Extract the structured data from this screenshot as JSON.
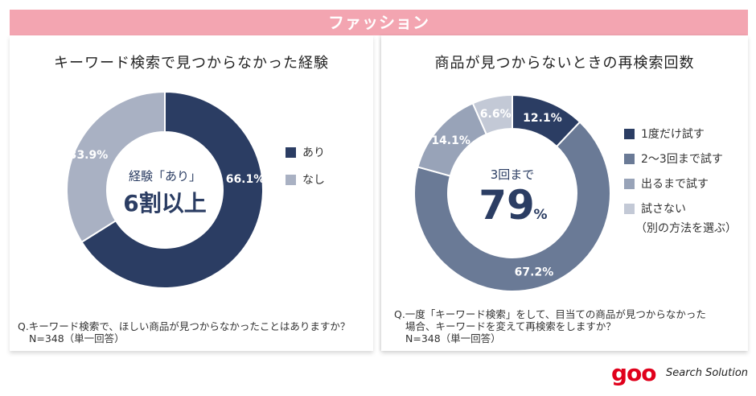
{
  "banner": "ファッション",
  "left": {
    "title": "キーワード検索で見つからなかった経験",
    "center_small": "経験「あり」",
    "center_big": "6割以上",
    "note_q": "Q.キーワード検索で、ほしい商品が見つからなかったことはありますか？",
    "note_n": "N=348（単一回答）"
  },
  "right": {
    "title": "商品が見つからないときの再検索回数",
    "center_small": "3回まで",
    "center_big": "79",
    "center_unit": "%",
    "note_q1": "Q.一度「キーワード検索」をして、目当ての商品が見つからなかった",
    "note_q2": "場合、キーワードを変えて再検索をしますか？",
    "note_n": "N=348（単一回答）"
  },
  "chart_data": [
    {
      "type": "pie",
      "donut": true,
      "title": "キーワード検索で見つからなかった経験",
      "legend": "right",
      "categories": [
        "あり",
        "なし"
      ],
      "values": [
        66.1,
        33.9
      ],
      "labels": [
        "66.1%",
        "33.9%"
      ],
      "colors": [
        "#2b3d63",
        "#a9b1c3"
      ]
    },
    {
      "type": "pie",
      "donut": true,
      "title": "商品が見つからないときの再検索回数",
      "legend": "right",
      "categories": [
        "1度だけ試す",
        "2〜3回まで試す",
        "出るまで試す",
        "試さない"
      ],
      "legend_extra": "（別の方法を選ぶ）",
      "values": [
        12.1,
        67.2,
        14.1,
        6.6
      ],
      "labels": [
        "12.1%",
        "67.2%",
        "14.1%",
        "6.6%"
      ],
      "colors": [
        "#2b3d63",
        "#6a7a96",
        "#98a3b8",
        "#c3c9d6"
      ]
    }
  ],
  "logo": {
    "brand": "goo",
    "tagline": "Search Solution"
  }
}
